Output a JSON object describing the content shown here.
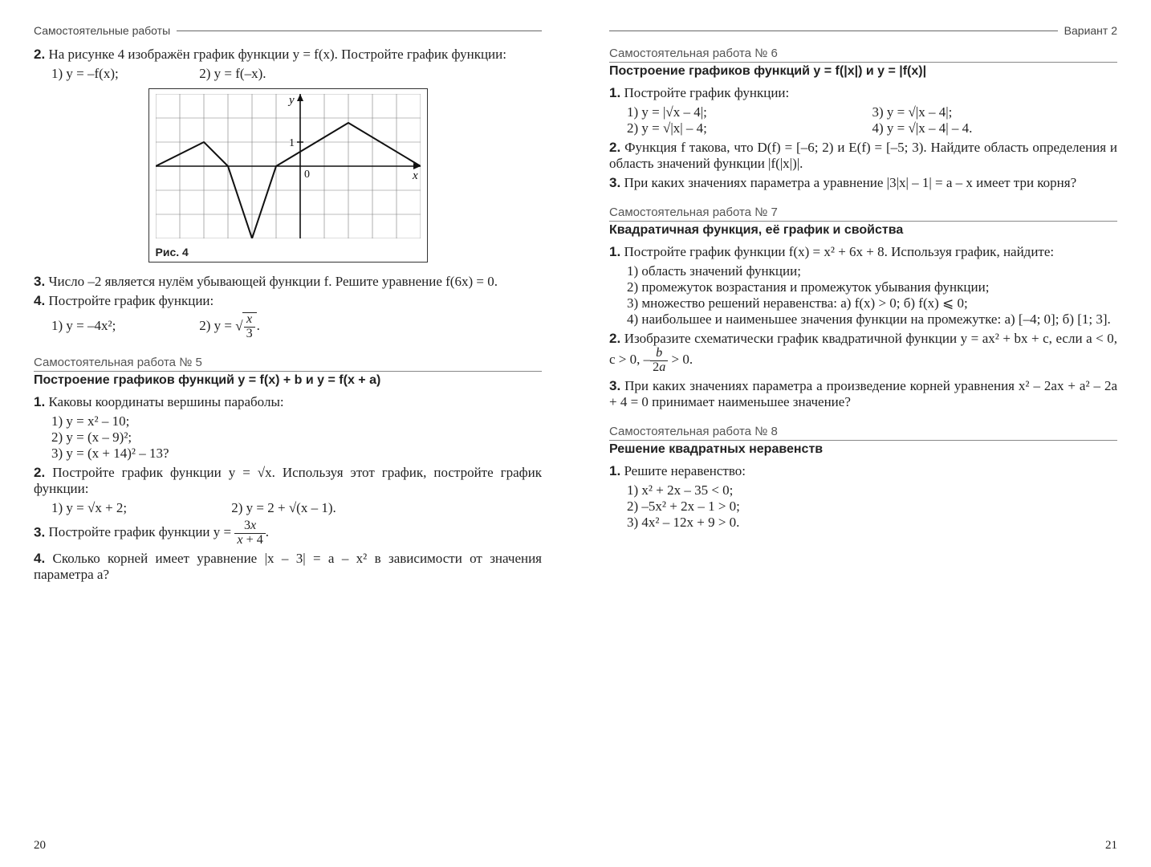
{
  "pageL": {
    "header": "Самостоятельные работы",
    "pagenum": "20",
    "t2": "На рисунке 4 изображён график функции y = f(x). Постройте график функции:",
    "t2s1": "1) y = –f(x);",
    "t2s2": "2) y = f(–x).",
    "figLabel": "Рис. 4",
    "t3": "Число –2 является нулём убывающей функции f. Решите уравнение f(6x) = 0.",
    "t4": "Постройте график функции:",
    "t4s1a": "1)  y = –4x²;",
    "t4s2a": "2)  y = ",
    "s5title": "Самостоятельная работа № 5",
    "s5sub": "Построение графиков функций y = f(x) + b и y = f(x + a)",
    "s5t1": "Каковы координаты вершины параболы:",
    "s5t1a": "1)  y = x² – 10;",
    "s5t1b": "2)  y = (x – 9)²;",
    "s5t1c": "3)  y = (x + 14)² – 13?",
    "s5t2a": "Постройте график функции  y = √x.  Используя этот график, постройте график функции:",
    "s5t2s1": "1)  y = √x + 2;",
    "s5t2s2": "2)  y = 2 + √(x – 1).",
    "s5t3": "Постройте график функции  y = ",
    "s5t4": "Сколько корней имеет уравнение  |x – 3| = a – x²  в зависимости от значения параметра a?"
  },
  "pageR": {
    "header": "Вариант 2",
    "pagenum": "21",
    "s6title": "Самостоятельная работа № 6",
    "s6sub": "Построение графиков функций y = f(|x|) и y = |f(x)|",
    "s6t1": "Постройте график функции:",
    "s6t1a": "1)  y = |√x – 4|;",
    "s6t1c": "3)  y = √|x – 4|;",
    "s6t1b": "2)  y = √|x| – 4;",
    "s6t1d": "4)  y = √|x – 4| – 4.",
    "s6t2": "Функция f такова, что D(f) = [–6; 2) и E(f) = [–5; 3). Найдите область определения и область значений функции |f(|x|)|.",
    "s6t3": "При каких значениях параметра a уравнение |3|x| – 1| = a – x  имеет три корня?",
    "s7title": "Самостоятельная работа № 7",
    "s7sub": "Квадратичная функция, её график и свойства",
    "s7t1": "Постройте график функции  f(x) = x² + 6x + 8.  Используя график, найдите:",
    "s7t1a": "1) область значений функции;",
    "s7t1b": "2) промежуток возрастания и промежуток убывания функции;",
    "s7t1c": "3) множество решений неравенства: а) f(x) > 0; б) f(x) ⩽ 0;",
    "s7t1d": "4) наибольшее и наименьшее значения функции на промежутке: а) [–4; 0]; б) [1; 3].",
    "s7t2": "Изобразите схематически график квадратичной функции  y = ax² + bx + c,  если  a < 0,  c > 0,  –",
    "s7t2b": " > 0.",
    "s7t3": "При каких значениях параметра a произведение корней уравнения  x² – 2ax + a² – 2a + 4 = 0  принимает наименьшее значение?",
    "s8title": "Самостоятельная работа № 8",
    "s8sub": "Решение квадратных неравенств",
    "s8t1": "Решите неравенство:",
    "s8t1a": "1)  x² + 2x – 35 < 0;",
    "s8t1b": "2)  –5x² + 2x – 1 > 0;",
    "s8t1c": "3)  4x² – 12x + 9 > 0."
  },
  "graph": {
    "grid_xmin": -6,
    "grid_xmax": 5,
    "grid_ymin": -3,
    "grid_ymax": 3,
    "cell": 30,
    "grid_color": "#7a7a7a",
    "axis_color": "#111",
    "curve_color": "#111",
    "points": [
      [
        -6,
        0
      ],
      [
        -4,
        1
      ],
      [
        -3,
        0
      ],
      [
        -2,
        -3
      ],
      [
        -1,
        0
      ],
      [
        2,
        1.8
      ],
      [
        5,
        0
      ]
    ],
    "xlabel": "x",
    "ylabel": "y",
    "one": "1",
    "zero": "0"
  }
}
